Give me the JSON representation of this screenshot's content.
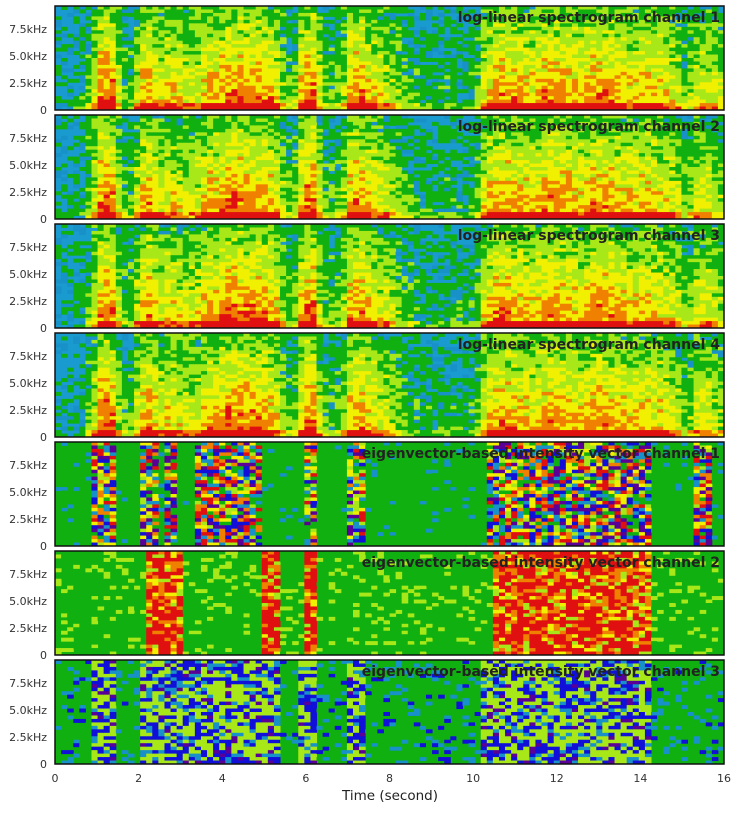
{
  "chart_data": {
    "type": "heatmap",
    "xlabel": "Time (second)",
    "x_range": [
      0,
      16
    ],
    "x_ticks": [
      "0",
      "2",
      "4",
      "6",
      "8",
      "10",
      "12",
      "14",
      "16"
    ],
    "colormap": [
      "#5a0096",
      "#1010d8",
      "#1890c8",
      "#10b010",
      "#a8e818",
      "#f0f000",
      "#f08000",
      "#e01010"
    ],
    "panels": [
      {
        "title": "log-linear spectrogram channel 1",
        "y_ticks": [
          "0",
          "2.5kHz",
          "5.0kHz",
          "7.5kHz"
        ],
        "y_range_khz": [
          0,
          9.6
        ],
        "background": "#1a9bd0",
        "profile": [
          0.1,
          0.1,
          0.1,
          0.2,
          0.5,
          0.95,
          0.9,
          0.3,
          0.3,
          0.7,
          0.85,
          0.6,
          0.7,
          0.6,
          0.55,
          0.6,
          0.8,
          0.75,
          0.9,
          0.9,
          0.85,
          0.85,
          0.8,
          0.75,
          0.4,
          0.3,
          0.85,
          0.95,
          0.35,
          0.3,
          0.35,
          0.85,
          0.85,
          0.7,
          0.6,
          0.55,
          0.4,
          0.3,
          0.25,
          0.2,
          0.2,
          0.25,
          0.2,
          0.2,
          0.25,
          0.65,
          0.8,
          0.85,
          0.8,
          0.75,
          0.7,
          0.8,
          0.85,
          0.8,
          0.75,
          0.7,
          0.8,
          0.85,
          0.8,
          0.75,
          0.7,
          0.7,
          0.75,
          0.7,
          0.65,
          0.6,
          0.3,
          0.55,
          0.6,
          0.55,
          0.4
        ]
      },
      {
        "title": "log-linear spectrogram channel 2",
        "y_ticks": [
          "0",
          "2.5kHz",
          "5.0kHz",
          "7.5kHz"
        ],
        "y_range_khz": [
          0,
          9.6
        ],
        "background": "#1a9bd0",
        "profile": [
          0.1,
          0.1,
          0.1,
          0.2,
          0.5,
          0.95,
          0.9,
          0.3,
          0.3,
          0.7,
          0.85,
          0.6,
          0.7,
          0.6,
          0.55,
          0.6,
          0.8,
          0.75,
          0.9,
          0.9,
          0.85,
          0.85,
          0.8,
          0.75,
          0.4,
          0.3,
          0.85,
          0.95,
          0.35,
          0.3,
          0.35,
          0.85,
          0.85,
          0.7,
          0.6,
          0.55,
          0.4,
          0.3,
          0.25,
          0.2,
          0.2,
          0.25,
          0.2,
          0.2,
          0.25,
          0.65,
          0.8,
          0.85,
          0.8,
          0.75,
          0.7,
          0.8,
          0.85,
          0.8,
          0.75,
          0.7,
          0.8,
          0.85,
          0.8,
          0.75,
          0.7,
          0.7,
          0.75,
          0.7,
          0.65,
          0.6,
          0.3,
          0.55,
          0.6,
          0.55,
          0.4
        ]
      },
      {
        "title": "log-linear spectrogram channel 3",
        "y_ticks": [
          "0",
          "2.5kHz",
          "5.0kHz",
          "7.5kHz"
        ],
        "y_range_khz": [
          0,
          9.6
        ],
        "background": "#1a9bd0",
        "profile": [
          0.1,
          0.1,
          0.1,
          0.2,
          0.5,
          0.95,
          0.9,
          0.3,
          0.3,
          0.7,
          0.85,
          0.6,
          0.7,
          0.6,
          0.55,
          0.6,
          0.8,
          0.75,
          0.9,
          0.9,
          0.85,
          0.85,
          0.8,
          0.75,
          0.4,
          0.3,
          0.85,
          0.95,
          0.35,
          0.3,
          0.35,
          0.85,
          0.85,
          0.7,
          0.6,
          0.55,
          0.4,
          0.3,
          0.25,
          0.2,
          0.2,
          0.25,
          0.2,
          0.2,
          0.25,
          0.65,
          0.8,
          0.85,
          0.8,
          0.75,
          0.7,
          0.8,
          0.85,
          0.8,
          0.75,
          0.7,
          0.8,
          0.85,
          0.8,
          0.75,
          0.7,
          0.7,
          0.75,
          0.7,
          0.65,
          0.6,
          0.3,
          0.55,
          0.6,
          0.55,
          0.4
        ]
      },
      {
        "title": "log-linear spectrogram channel 4",
        "y_ticks": [
          "0",
          "2.5kHz",
          "5.0kHz",
          "7.5kHz"
        ],
        "y_range_khz": [
          0,
          9.6
        ],
        "background": "#1a9bd0",
        "profile": [
          0.1,
          0.1,
          0.1,
          0.2,
          0.5,
          0.95,
          0.9,
          0.3,
          0.3,
          0.7,
          0.85,
          0.6,
          0.7,
          0.6,
          0.55,
          0.6,
          0.8,
          0.75,
          0.9,
          0.9,
          0.85,
          0.85,
          0.8,
          0.75,
          0.4,
          0.3,
          0.85,
          0.95,
          0.35,
          0.3,
          0.35,
          0.85,
          0.85,
          0.7,
          0.6,
          0.55,
          0.4,
          0.3,
          0.25,
          0.2,
          0.2,
          0.25,
          0.2,
          0.2,
          0.25,
          0.65,
          0.8,
          0.85,
          0.8,
          0.75,
          0.7,
          0.8,
          0.85,
          0.8,
          0.75,
          0.7,
          0.8,
          0.85,
          0.8,
          0.75,
          0.7,
          0.7,
          0.75,
          0.7,
          0.65,
          0.6,
          0.3,
          0.55,
          0.6,
          0.55,
          0.4
        ]
      },
      {
        "title": "eigenvector-based intensity vector channel 1",
        "y_ticks": [
          "0",
          "2.5kHz",
          "5.0kHz",
          "7.5kHz"
        ],
        "y_range_khz": [
          0,
          9.6
        ],
        "background": "#10b010",
        "profile": [
          0.3,
          0.3,
          0.3,
          0.4,
          0.6,
          0.8,
          0.7,
          0.3,
          0.3,
          0.6,
          0.7,
          0.5,
          0.6,
          0.5,
          0.4,
          0.6,
          0.7,
          0.6,
          0.7,
          0.6,
          0.6,
          0.6,
          0.5,
          0.5,
          0.4,
          0.3,
          0.6,
          0.7,
          0.4,
          0.3,
          0.4,
          0.6,
          0.6,
          0.5,
          0.5,
          0.5,
          0.4,
          0.3,
          0.3,
          0.3,
          0.3,
          0.3,
          0.3,
          0.3,
          0.3,
          0.5,
          0.7,
          0.75,
          0.7,
          0.6,
          0.6,
          0.6,
          0.7,
          0.6,
          0.6,
          0.6,
          0.7,
          0.75,
          0.8,
          0.8,
          0.7,
          0.6,
          0.6,
          0.5,
          0.5,
          0.5,
          0.4,
          0.6,
          0.6,
          0.5,
          0.4
        ]
      },
      {
        "title": "eigenvector-based intensity vector channel 2",
        "y_ticks": [
          "0",
          "2.5kHz",
          "5.0kHz",
          "7.5kHz"
        ],
        "y_range_khz": [
          0,
          9.6
        ],
        "background": "#10b010",
        "profile": [
          0.2,
          0.2,
          0.2,
          0.2,
          0.3,
          0.4,
          0.4,
          0.3,
          0.3,
          0.5,
          0.7,
          0.6,
          0.7,
          0.6,
          0.5,
          0.5,
          0.5,
          0.4,
          0.5,
          0.5,
          0.5,
          0.5,
          0.6,
          0.6,
          0.4,
          0.3,
          0.6,
          0.7,
          0.3,
          0.3,
          0.3,
          0.4,
          0.4,
          0.4,
          0.4,
          0.4,
          0.3,
          0.3,
          0.3,
          0.3,
          0.3,
          0.3,
          0.3,
          0.3,
          0.3,
          0.4,
          0.7,
          0.8,
          0.7,
          0.6,
          0.6,
          0.6,
          0.7,
          0.6,
          0.6,
          0.6,
          0.8,
          0.9,
          0.9,
          0.8,
          0.7,
          0.6,
          0.6,
          0.5,
          0.5,
          0.5,
          0.4,
          0.5,
          0.5,
          0.4,
          0.3
        ]
      },
      {
        "title": "eigenvector-based intensity vector channel 3",
        "y_ticks": [
          "0",
          "2.5kHz",
          "5.0kHz",
          "7.5kHz"
        ],
        "y_range_khz": [
          0,
          9.6
        ],
        "background": "#10b010",
        "profile": [
          0.2,
          0.2,
          0.2,
          0.3,
          0.5,
          0.6,
          0.6,
          0.3,
          0.3,
          0.5,
          0.6,
          0.5,
          0.6,
          0.5,
          0.5,
          0.5,
          0.6,
          0.5,
          0.6,
          0.6,
          0.6,
          0.6,
          0.5,
          0.5,
          0.4,
          0.3,
          0.5,
          0.6,
          0.3,
          0.3,
          0.3,
          0.5,
          0.5,
          0.4,
          0.4,
          0.4,
          0.3,
          0.3,
          0.3,
          0.3,
          0.3,
          0.3,
          0.3,
          0.3,
          0.3,
          0.5,
          0.6,
          0.6,
          0.6,
          0.5,
          0.5,
          0.5,
          0.6,
          0.5,
          0.5,
          0.5,
          0.6,
          0.6,
          0.6,
          0.6,
          0.5,
          0.5,
          0.5,
          0.4,
          0.4,
          0.4,
          0.3,
          0.4,
          0.4,
          0.4,
          0.3
        ]
      }
    ]
  }
}
